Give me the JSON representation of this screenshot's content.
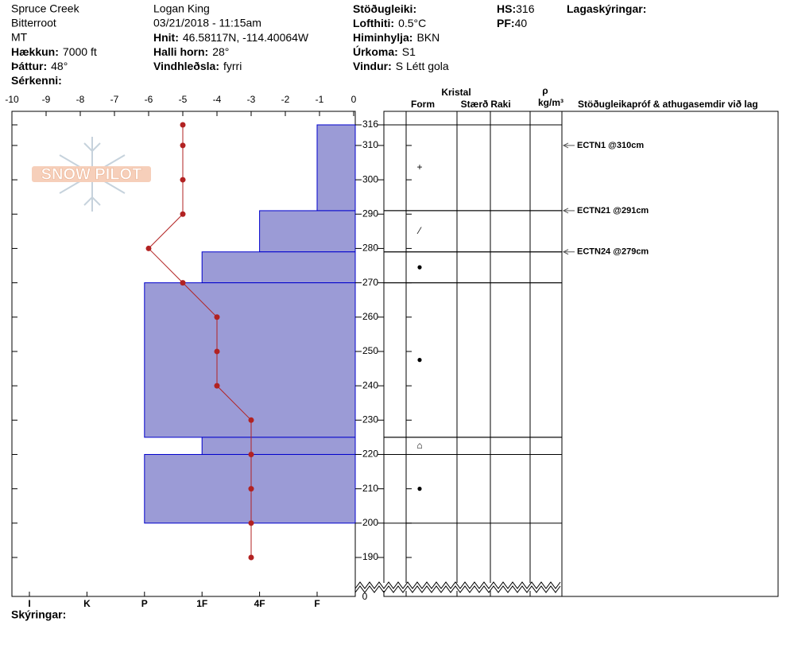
{
  "header": {
    "columns": [
      [
        {
          "text": "Spruce Creek"
        },
        {
          "text": "Bitterroot"
        },
        {
          "text": "MT"
        },
        {
          "label": "Hækkun:",
          "value": "7000 ft"
        },
        {
          "label": "Þáttur:",
          "value": "48°"
        },
        {
          "label": "Sérkenni:"
        }
      ],
      [
        {
          "text": "Logan King"
        },
        {
          "text": "03/21/2018 - 11:15am"
        },
        {
          "label": "Hnit:",
          "value": "46.58117N, -114.40064W"
        },
        {
          "label": "Halli horn:",
          "value": "28°"
        },
        {
          "label": "Vindhleðsla:",
          "value": "fyrri"
        }
      ],
      [
        {
          "label": "Stöðugleiki:"
        },
        {
          "label": "Lofthiti:",
          "value": "0.5°C"
        },
        {
          "label": "Himinhylja:",
          "value": "BKN"
        },
        {
          "label": "Úrkoma:",
          "value": "S1"
        },
        {
          "label": "Vindur:",
          "value": "S Létt gola"
        }
      ],
      [
        {
          "label": "HS:",
          "value": "316"
        },
        {
          "label": "PF:",
          "value": "40"
        }
      ],
      [
        {
          "label": "Lagaskýringar:"
        }
      ]
    ],
    "footer": "Skýringar:",
    "logo": "SNOW PILOT"
  },
  "chart_data": {
    "type": "snowprofile",
    "ylim": [
      316,
      190
    ],
    "yticks": [
      316,
      310,
      300,
      290,
      280,
      270,
      260,
      250,
      240,
      230,
      220,
      210,
      200,
      190
    ],
    "yticks_below_break": [
      0
    ],
    "temperature": {
      "xlim": [
        -10,
        0
      ],
      "xticks": [
        -10,
        -9,
        -8,
        -7,
        -6,
        -5,
        -4,
        -3,
        -2,
        -1,
        0
      ],
      "color": "#b22222",
      "depths": [
        316,
        310,
        300,
        290,
        280,
        270,
        260,
        250,
        240,
        230,
        220,
        210,
        200,
        190
      ],
      "values": [
        -5,
        -5,
        -5,
        -5,
        -6,
        -5,
        -4,
        -4,
        -4,
        -3,
        -3,
        -3,
        -3,
        -3
      ]
    },
    "hardness": {
      "categories": [
        "I",
        "K",
        "P",
        "1F",
        "4F",
        "F"
      ],
      "color": "#9b9bd6",
      "edge": "#0000cc"
    },
    "layers": [
      {
        "top": 316,
        "bottom": 291,
        "hardness": "F",
        "form": "+"
      },
      {
        "top": 291,
        "bottom": 279,
        "hardness": "4F",
        "form": "⁄"
      },
      {
        "top": 279,
        "bottom": 270,
        "hardness": "1F",
        "form": "●"
      },
      {
        "top": 270,
        "bottom": 225,
        "hardness": "P",
        "form": "●"
      },
      {
        "top": 225,
        "bottom": 220,
        "hardness": "1F",
        "form": "⌂"
      },
      {
        "top": 220,
        "bottom": 200,
        "hardness": "P",
        "form": "●"
      }
    ],
    "column_titles": {
      "crystal": "Kristal",
      "form": "Form",
      "size": "Stærð",
      "moisture": "Raki",
      "rho": "ρ",
      "density_unit": "kg/m³",
      "tests": "Stöðugleikapróf & athugasemdir við lag"
    },
    "tests": [
      {
        "label": "ECTN1 @310cm",
        "depth": 310
      },
      {
        "label": "ECTN21 @291cm",
        "depth": 291
      },
      {
        "label": "ECTN24 @279cm",
        "depth": 279
      }
    ]
  }
}
